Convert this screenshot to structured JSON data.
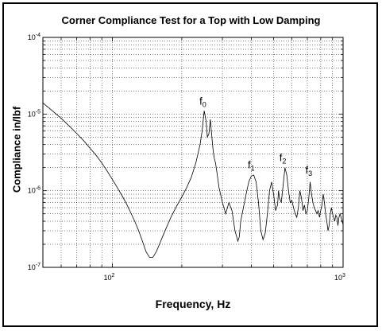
{
  "chart_data": {
    "type": "line",
    "title": "Corner Compliance Test for a Top with Low Damping",
    "xlabel": "Frequency, Hz",
    "ylabel": "Compliance in/lbf",
    "x_scale": "log",
    "y_scale": "log",
    "xlim": [
      50,
      1000
    ],
    "ylim": [
      1e-07,
      0.0001
    ],
    "grid": true,
    "x_ticks": [
      {
        "value": 100,
        "base": "10",
        "exp": "2"
      },
      {
        "value": 1000,
        "base": "10",
        "exp": "3"
      }
    ],
    "y_ticks": [
      {
        "value": 1e-07,
        "base": "10",
        "exp": "-7"
      },
      {
        "value": 1e-06,
        "base": "10",
        "exp": "-6"
      },
      {
        "value": 1e-05,
        "base": "10",
        "exp": "-5"
      },
      {
        "value": 0.0001,
        "base": "10",
        "exp": "-4"
      }
    ],
    "annotations": [
      {
        "base": "f",
        "sub": "0",
        "x": 250,
        "y": 1.15e-05
      },
      {
        "base": "f",
        "sub": "1",
        "x": 405,
        "y": 1.7e-06
      },
      {
        "base": "f",
        "sub": "2",
        "x": 555,
        "y": 2.1e-06
      },
      {
        "base": "f",
        "sub": "3",
        "x": 720,
        "y": 1.45e-06
      }
    ],
    "series": [
      {
        "x": [
          50,
          55,
          60,
          65,
          70,
          75,
          80,
          85,
          90,
          95,
          100,
          105,
          110,
          115,
          120,
          125,
          130,
          135,
          140,
          145,
          150,
          155,
          160,
          165,
          170,
          175,
          180,
          185,
          190,
          200,
          210,
          220,
          230,
          240,
          245,
          250,
          255,
          258,
          262,
          266,
          270,
          273,
          276,
          280,
          285,
          290,
          300,
          310,
          320,
          330,
          340,
          350,
          355,
          360,
          370,
          380,
          390,
          400,
          410,
          420,
          430,
          440,
          450,
          460,
          470,
          480,
          490,
          500,
          510,
          520,
          525,
          530,
          540,
          550,
          560,
          570,
          580,
          590,
          600,
          610,
          620,
          630,
          640,
          650,
          660,
          670,
          680,
          690,
          700,
          710,
          720,
          730,
          740,
          750,
          760,
          770,
          780,
          790,
          800,
          810,
          820,
          830,
          840,
          850,
          860,
          870,
          880,
          890,
          900,
          910,
          920,
          930,
          940,
          950,
          960,
          970,
          980,
          990,
          1000
        ],
        "y": [
          1.4e-05,
          1.1e-05,
          8.8e-06,
          7e-06,
          5.6e-06,
          4.5e-06,
          3.6e-06,
          2.9e-06,
          2.3e-06,
          1.8e-06,
          1.4e-06,
          1.1e-06,
          8.7e-07,
          6.8e-07,
          5.2e-07,
          4e-07,
          3e-07,
          2.2e-07,
          1.6e-07,
          1.35e-07,
          1.35e-07,
          1.6e-07,
          2e-07,
          2.5e-07,
          3.1e-07,
          3.8e-07,
          4.6e-07,
          5.4e-07,
          6.3e-07,
          8.3e-07,
          1.1e-06,
          1.5e-06,
          2.3e-06,
          4e-06,
          6e-06,
          1.1e-05,
          8e-06,
          5e-06,
          5.5e-06,
          8.5e-06,
          5e-06,
          3.5e-06,
          2.7e-06,
          2.3e-06,
          1.6e-06,
          1.1e-06,
          7e-07,
          5e-07,
          7e-07,
          5.5e-07,
          3e-07,
          2.2e-07,
          2.5e-07,
          4e-07,
          6e-07,
          9e-07,
          1.3e-06,
          1.55e-06,
          1.6e-06,
          1.3e-06,
          7e-07,
          3e-07,
          2.3e-07,
          2.8e-07,
          5e-07,
          1e-06,
          1.3e-06,
          9e-07,
          5.5e-07,
          6.5e-07,
          1e-06,
          8e-07,
          7e-07,
          1.2e-06,
          2e-06,
          1.6e-06,
          1e-06,
          7e-07,
          7.5e-07,
          6e-07,
          5e-07,
          4.5e-07,
          6e-07,
          1e-06,
          8e-07,
          5.5e-07,
          6.5e-07,
          5e-07,
          5.5e-07,
          8e-07,
          1.3e-06,
          9e-07,
          7e-07,
          6e-07,
          5.5e-07,
          5e-07,
          5.5e-07,
          4.5e-07,
          5.5e-07,
          6.5e-07,
          9e-07,
          7e-07,
          5e-07,
          4e-07,
          3e-07,
          3.5e-07,
          5e-07,
          6e-07,
          5e-07,
          4.5e-07,
          4e-07,
          4.8e-07,
          4.5e-07,
          3.5e-07,
          4.5e-07,
          5e-07,
          4.5e-07,
          4e-07,
          3.6e-07
        ]
      }
    ]
  }
}
